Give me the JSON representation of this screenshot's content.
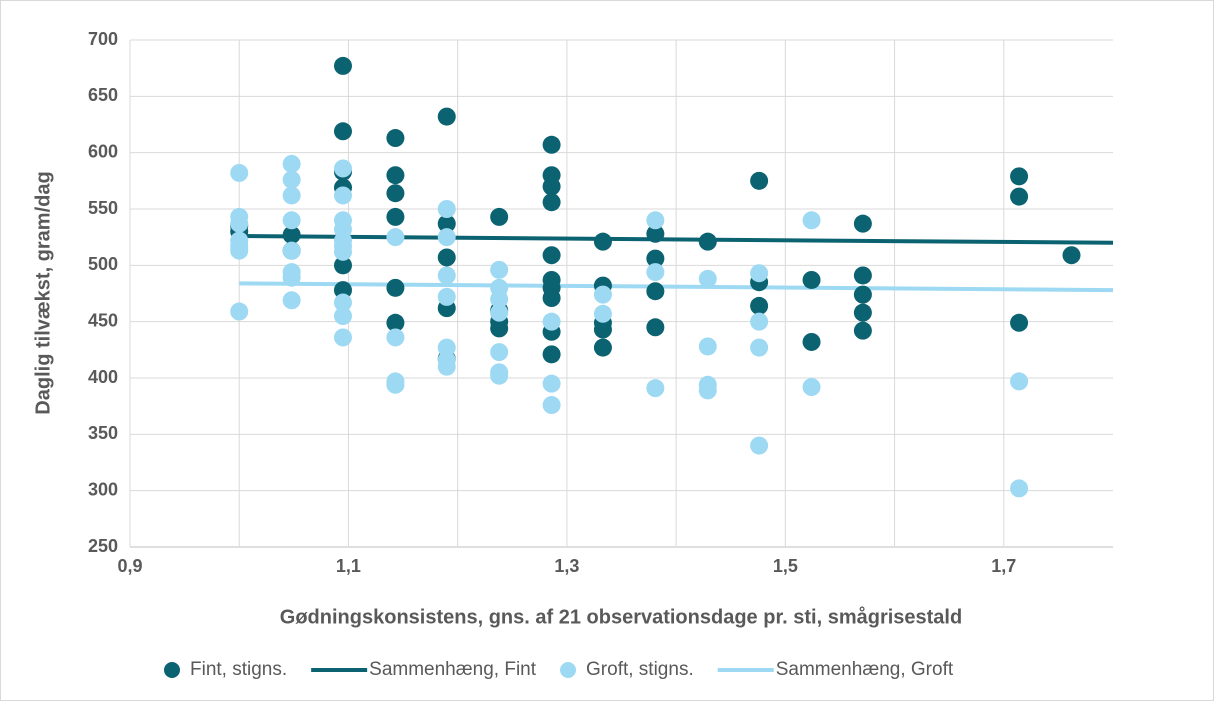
{
  "chart_data": {
    "type": "scatter",
    "x_label": "Gødningskonsistens, gns. af 21 observationsdage pr. sti, smågrisestald",
    "y_label": "Daglig tilvækst, gram/dag",
    "xlim": [
      0.9,
      1.8
    ],
    "xticks": [
      {
        "value": 0.9,
        "label": "0,9"
      },
      {
        "value": 1.1,
        "label": "1,1"
      },
      {
        "value": 1.3,
        "label": "1,3"
      },
      {
        "value": 1.5,
        "label": "1,5"
      },
      {
        "value": 1.7,
        "label": "1,7"
      }
    ],
    "x_minor_grid": [
      1.0,
      1.2,
      1.4,
      1.6
    ],
    "ylim": [
      250,
      700
    ],
    "yticks": [
      250,
      300,
      350,
      400,
      450,
      500,
      550,
      600,
      650,
      700
    ],
    "grid": true,
    "legend": "bottom",
    "series": [
      {
        "name": "Fint, stigns.",
        "type": "scatter",
        "color": "#0b6270",
        "x": [
          1.0,
          1.0,
          1.048,
          1.048,
          1.095,
          1.095,
          1.095,
          1.095,
          1.095,
          1.095,
          1.143,
          1.143,
          1.143,
          1.143,
          1.143,
          1.143,
          1.19,
          1.19,
          1.19,
          1.19,
          1.19,
          1.238,
          1.238,
          1.238,
          1.238,
          1.286,
          1.286,
          1.286,
          1.286,
          1.286,
          1.286,
          1.286,
          1.286,
          1.286,
          1.286,
          1.333,
          1.333,
          1.333,
          1.333,
          1.333,
          1.381,
          1.381,
          1.381,
          1.381,
          1.429,
          1.476,
          1.476,
          1.476,
          1.524,
          1.524,
          1.571,
          1.571,
          1.571,
          1.571,
          1.571,
          1.714,
          1.714,
          1.714,
          1.762
        ],
        "values": [
          530,
          535,
          527,
          513,
          677,
          619,
          583,
          569,
          500,
          478,
          613,
          580,
          564,
          543,
          480,
          449,
          632,
          537,
          507,
          462,
          417,
          543,
          460,
          450,
          444,
          607,
          580,
          570,
          556,
          509,
          487,
          480,
          471,
          441,
          421,
          521,
          482,
          449,
          443,
          427,
          528,
          506,
          477,
          445,
          521,
          575,
          485,
          464,
          487,
          432,
          537,
          491,
          474,
          458,
          442,
          579,
          561,
          449,
          509
        ]
      },
      {
        "name": "Sammenhæng, Fint",
        "type": "line",
        "color": "#0b6270",
        "x": [
          1.0,
          1.8
        ],
        "values": [
          526,
          520
        ]
      },
      {
        "name": "Groft, stigns.",
        "type": "scatter",
        "color": "#9dd9f3",
        "x": [
          1.0,
          1.0,
          1.0,
          1.0,
          1.0,
          1.0,
          1.0,
          1.048,
          1.048,
          1.048,
          1.048,
          1.048,
          1.048,
          1.048,
          1.048,
          1.095,
          1.095,
          1.095,
          1.095,
          1.095,
          1.095,
          1.095,
          1.095,
          1.095,
          1.095,
          1.143,
          1.143,
          1.143,
          1.143,
          1.19,
          1.19,
          1.19,
          1.19,
          1.19,
          1.19,
          1.19,
          1.238,
          1.238,
          1.238,
          1.238,
          1.238,
          1.238,
          1.238,
          1.286,
          1.286,
          1.286,
          1.333,
          1.333,
          1.381,
          1.381,
          1.381,
          1.429,
          1.429,
          1.429,
          1.429,
          1.476,
          1.476,
          1.476,
          1.476,
          1.524,
          1.524,
          1.714,
          1.714
        ],
        "values": [
          582,
          543,
          537,
          522,
          517,
          513,
          459,
          590,
          576,
          562,
          540,
          513,
          494,
          489,
          469,
          586,
          562,
          540,
          532,
          522,
          517,
          512,
          467,
          455,
          436,
          525,
          436,
          397,
          394,
          550,
          525,
          491,
          472,
          427,
          416,
          410,
          496,
          480,
          470,
          458,
          423,
          405,
          402,
          450,
          395,
          376,
          474,
          457,
          540,
          494,
          391,
          488,
          428,
          394,
          389,
          493,
          450,
          427,
          340,
          540,
          392,
          397,
          302
        ]
      },
      {
        "name": "Sammenhæng, Groft",
        "type": "line",
        "color": "#9dd9f3",
        "x": [
          1.0,
          1.8
        ],
        "values": [
          484,
          478
        ]
      }
    ]
  }
}
